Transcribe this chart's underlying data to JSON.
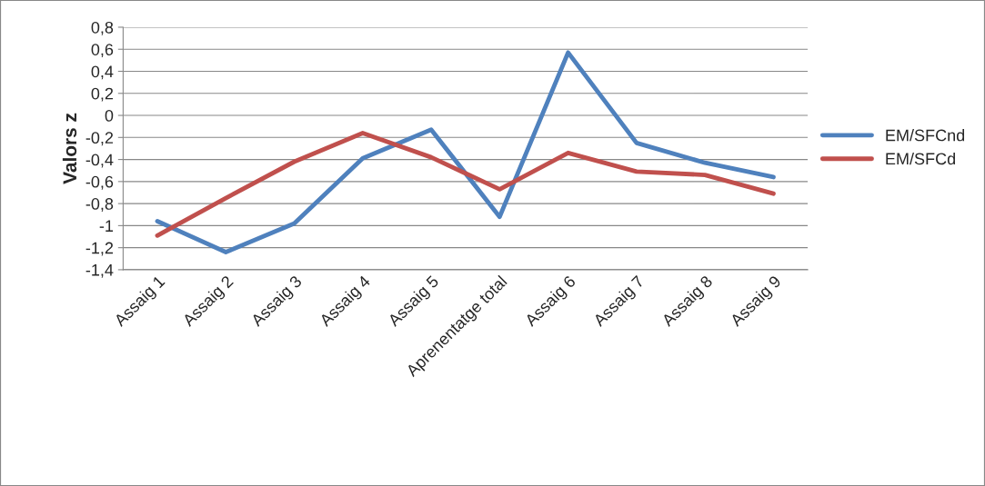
{
  "chart_data": {
    "type": "line",
    "ylabel": "Valors z",
    "categories": [
      "Assaig 1",
      "Assaig 2",
      "Assaig 3",
      "Assaig 4",
      "Assaig 5",
      "Aprenentatge total",
      "Assaig 6",
      "Assaig 7",
      "Assaig 8",
      "Assaig 9"
    ],
    "series": [
      {
        "name": "EM/SFCnd",
        "color": "#4f81bd",
        "values": [
          -0.96,
          -1.24,
          -0.98,
          -0.39,
          -0.13,
          -0.92,
          0.57,
          -0.25,
          -0.43,
          -0.56
        ]
      },
      {
        "name": "EM/SFCd",
        "color": "#c0504d",
        "values": [
          -1.09,
          -0.75,
          -0.42,
          -0.16,
          -0.38,
          -0.67,
          -0.34,
          -0.51,
          -0.54,
          -0.71
        ]
      }
    ],
    "ylim": [
      -1.4,
      0.8
    ],
    "yticks": [
      {
        "value": -1.4,
        "label": "-1,4"
      },
      {
        "value": -1.2,
        "label": "-1,2"
      },
      {
        "value": -1,
        "label": "-1"
      },
      {
        "value": -0.8,
        "label": "-0,8"
      },
      {
        "value": -0.6,
        "label": "-0,6"
      },
      {
        "value": -0.4,
        "label": "-0,4"
      },
      {
        "value": -0.2,
        "label": "-0,2"
      },
      {
        "value": 0,
        "label": "0"
      },
      {
        "value": 0.2,
        "label": "0,2"
      },
      {
        "value": 0.4,
        "label": "0,4"
      },
      {
        "value": 0.6,
        "label": "0,6"
      },
      {
        "value": 0.8,
        "label": "0,8"
      }
    ],
    "grid": "y",
    "legend": "right",
    "marker": "none",
    "line_style": "solid"
  }
}
